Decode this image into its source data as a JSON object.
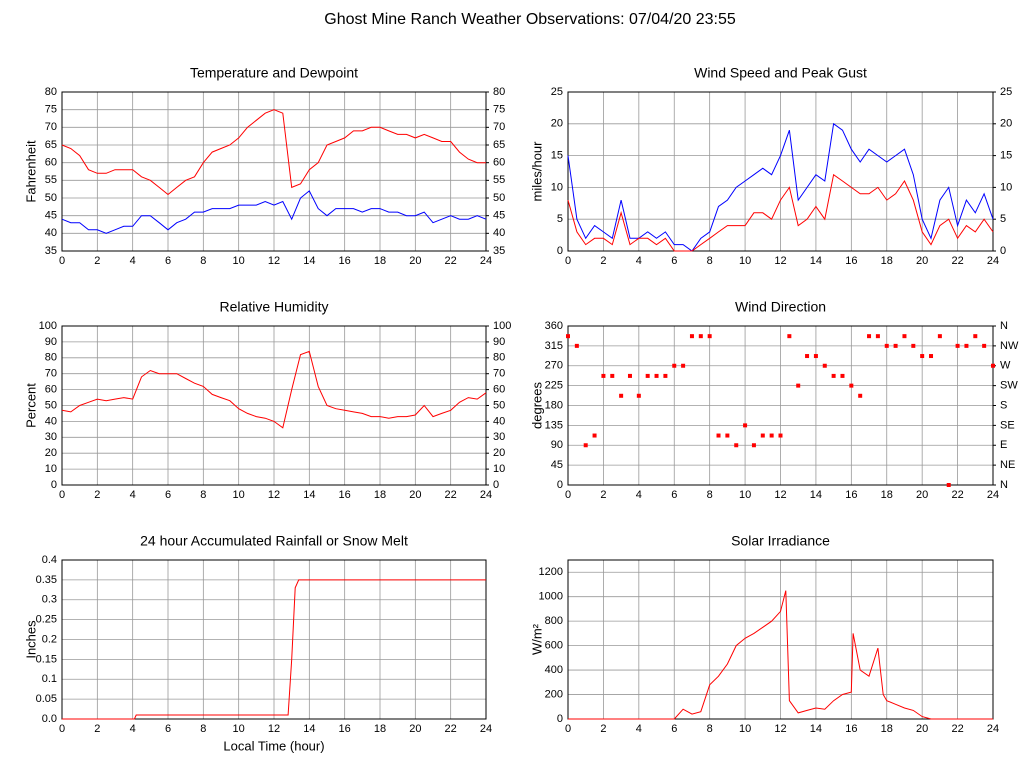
{
  "title": "Ghost Mine Ranch Weather Observations: 07/04/20 23:55",
  "chart_data": [
    {
      "type": "line",
      "title": "Temperature and Dewpoint",
      "y_label": "Fahrenheit",
      "x": [
        0,
        0.5,
        1,
        1.5,
        2,
        2.5,
        3,
        3.5,
        4,
        4.5,
        5,
        5.5,
        6,
        6.5,
        7,
        7.5,
        8,
        8.5,
        9,
        9.5,
        10,
        10.5,
        11,
        11.5,
        12,
        12.5,
        13,
        13.5,
        14,
        14.5,
        15,
        15.5,
        16,
        16.5,
        17,
        17.5,
        18,
        18.5,
        19,
        19.5,
        20,
        20.5,
        21,
        21.5,
        22,
        22.5,
        23,
        23.5,
        24
      ],
      "xlim": [
        0,
        24
      ],
      "xticks": [
        0,
        2,
        4,
        6,
        8,
        10,
        12,
        14,
        16,
        18,
        20,
        22,
        24
      ],
      "ylim": [
        35,
        80
      ],
      "yticks": [
        35,
        40,
        45,
        50,
        55,
        60,
        65,
        70,
        75,
        80
      ],
      "y2lim": [
        35,
        80
      ],
      "y2ticks": [
        35,
        40,
        45,
        50,
        55,
        60,
        65,
        70,
        75,
        80
      ],
      "grid": true,
      "series": [
        {
          "name": "Temperature",
          "color": "#ff0000",
          "values": [
            65,
            64,
            62,
            58,
            57,
            57,
            58,
            58,
            58,
            56,
            55,
            53,
            51,
            53,
            55,
            56,
            60,
            63,
            64,
            65,
            67,
            70,
            72,
            74,
            75,
            74,
            53,
            54,
            58,
            60,
            65,
            66,
            67,
            69,
            69,
            70,
            70,
            69,
            68,
            68,
            67,
            68,
            67,
            66,
            66,
            63,
            61,
            60,
            60
          ]
        },
        {
          "name": "Dewpoint",
          "color": "#0000ff",
          "values": [
            44,
            43,
            43,
            41,
            41,
            40,
            41,
            42,
            42,
            45,
            45,
            43,
            41,
            43,
            44,
            46,
            46,
            47,
            47,
            47,
            48,
            48,
            48,
            49,
            48,
            49,
            44,
            50,
            52,
            47,
            45,
            47,
            47,
            47,
            46,
            47,
            47,
            46,
            46,
            45,
            45,
            46,
            43,
            44,
            45,
            44,
            44,
            45,
            44
          ]
        }
      ]
    },
    {
      "type": "line",
      "title": "Wind Speed and Peak Gust",
      "y_label": "miles/hour",
      "x": [
        0,
        0.5,
        1,
        1.5,
        2,
        2.5,
        3,
        3.5,
        4,
        4.5,
        5,
        5.5,
        6,
        6.5,
        7,
        7.5,
        8,
        8.5,
        9,
        9.5,
        10,
        10.5,
        11,
        11.5,
        12,
        12.5,
        13,
        13.5,
        14,
        14.5,
        15,
        15.5,
        16,
        16.5,
        17,
        17.5,
        18,
        18.5,
        19,
        19.5,
        20,
        20.5,
        21,
        21.5,
        22,
        22.5,
        23,
        23.5,
        24
      ],
      "xlim": [
        0,
        24
      ],
      "xticks": [
        0,
        2,
        4,
        6,
        8,
        10,
        12,
        14,
        16,
        18,
        20,
        22,
        24
      ],
      "ylim": [
        0,
        25
      ],
      "yticks": [
        0,
        5,
        10,
        15,
        20,
        25
      ],
      "y2lim": [
        0,
        25
      ],
      "y2ticks": [
        0,
        5,
        10,
        15,
        20,
        25
      ],
      "grid": true,
      "series": [
        {
          "name": "Peak Gust",
          "color": "#0000ff",
          "values": [
            15,
            5,
            2,
            4,
            3,
            2,
            8,
            2,
            2,
            3,
            2,
            3,
            1,
            1,
            0,
            2,
            3,
            7,
            8,
            10,
            11,
            12,
            13,
            12,
            15,
            19,
            8,
            10,
            12,
            11,
            20,
            19,
            16,
            14,
            16,
            15,
            14,
            15,
            16,
            12,
            5,
            2,
            8,
            10,
            4,
            8,
            6,
            9,
            5
          ]
        },
        {
          "name": "Wind Speed",
          "color": "#ff0000",
          "values": [
            8,
            3,
            1,
            2,
            2,
            1,
            6,
            1,
            2,
            2,
            1,
            2,
            0,
            0,
            0,
            1,
            2,
            3,
            4,
            4,
            4,
            6,
            6,
            5,
            8,
            10,
            4,
            5,
            7,
            5,
            12,
            11,
            10,
            9,
            9,
            10,
            8,
            9,
            11,
            8,
            3,
            1,
            4,
            5,
            2,
            4,
            3,
            5,
            3
          ]
        }
      ]
    },
    {
      "type": "line",
      "title": "Relative Humidity",
      "y_label": "Percent",
      "x": [
        0,
        0.5,
        1,
        1.5,
        2,
        2.5,
        3,
        3.5,
        4,
        4.5,
        5,
        5.5,
        6,
        6.5,
        7,
        7.5,
        8,
        8.5,
        9,
        9.5,
        10,
        10.5,
        11,
        11.5,
        12,
        12.5,
        13,
        13.5,
        14,
        14.5,
        15,
        15.5,
        16,
        16.5,
        17,
        17.5,
        18,
        18.5,
        19,
        19.5,
        20,
        20.5,
        21,
        21.5,
        22,
        22.5,
        23,
        23.5,
        24
      ],
      "xlim": [
        0,
        24
      ],
      "xticks": [
        0,
        2,
        4,
        6,
        8,
        10,
        12,
        14,
        16,
        18,
        20,
        22,
        24
      ],
      "ylim": [
        0,
        100
      ],
      "yticks": [
        0,
        10,
        20,
        30,
        40,
        50,
        60,
        70,
        80,
        90,
        100
      ],
      "y2lim": [
        0,
        100
      ],
      "y2ticks": [
        0,
        10,
        20,
        30,
        40,
        50,
        60,
        70,
        80,
        90,
        100
      ],
      "grid": true,
      "series": [
        {
          "name": "Relative Humidity",
          "color": "#ff0000",
          "values": [
            47,
            46,
            50,
            52,
            54,
            53,
            54,
            55,
            54,
            68,
            72,
            70,
            70,
            70,
            67,
            64,
            62,
            57,
            55,
            53,
            48,
            45,
            43,
            42,
            40,
            36,
            60,
            82,
            84,
            62,
            50,
            48,
            47,
            46,
            45,
            43,
            43,
            42,
            43,
            43,
            44,
            50,
            43,
            45,
            47,
            52,
            55,
            54,
            58
          ]
        }
      ]
    },
    {
      "type": "scatter",
      "title": "Wind Direction",
      "y_label": "degrees",
      "x": [
        0,
        0.5,
        1,
        1.5,
        2,
        2.5,
        3,
        3.5,
        4,
        4.5,
        5,
        5.5,
        6,
        6.5,
        7,
        7.5,
        8,
        8.5,
        9,
        9.5,
        10,
        10.5,
        11,
        11.5,
        12,
        12.5,
        13,
        13.5,
        14,
        14.5,
        15,
        15.5,
        16,
        16.5,
        17,
        17.5,
        18,
        18.5,
        19,
        19.5,
        20,
        20.5,
        21,
        21.5,
        22,
        22.5,
        23,
        23.5,
        24
      ],
      "xlim": [
        0,
        24
      ],
      "xticks": [
        0,
        2,
        4,
        6,
        8,
        10,
        12,
        14,
        16,
        18,
        20,
        22,
        24
      ],
      "ylim": [
        0,
        360
      ],
      "yticks": [
        0,
        45,
        90,
        135,
        180,
        225,
        270,
        315,
        360
      ],
      "y2lim": [
        0,
        360
      ],
      "y2ticks": [
        {
          "value": 0,
          "label": "N"
        },
        {
          "value": 45,
          "label": "NE"
        },
        {
          "value": 90,
          "label": "E"
        },
        {
          "value": 135,
          "label": "SE"
        },
        {
          "value": 180,
          "label": "S"
        },
        {
          "value": 225,
          "label": "SW"
        },
        {
          "value": 270,
          "label": "W"
        },
        {
          "value": 315,
          "label": "NW"
        },
        {
          "value": 360,
          "label": "N"
        }
      ],
      "grid": true,
      "series": [
        {
          "name": "Wind Direction",
          "color": "#ff0000",
          "values": [
            337,
            315,
            90,
            112,
            247,
            247,
            202,
            247,
            202,
            247,
            247,
            247,
            270,
            270,
            337,
            337,
            337,
            112,
            112,
            90,
            135,
            90,
            112,
            112,
            112,
            337,
            225,
            292,
            292,
            270,
            247,
            247,
            225,
            202,
            337,
            337,
            315,
            315,
            337,
            315,
            292,
            292,
            337,
            0,
            315,
            315,
            337,
            315,
            270
          ]
        }
      ]
    },
    {
      "type": "line",
      "title": "24 hour Accumulated Rainfall or Snow Melt",
      "y_label": "Inches",
      "x_label": "Local Time (hour)",
      "x": [
        0,
        4.1,
        4.2,
        12.8,
        13.0,
        13.2,
        13.4,
        24
      ],
      "xlim": [
        0,
        24
      ],
      "xticks": [
        0,
        2,
        4,
        6,
        8,
        10,
        12,
        14,
        16,
        18,
        20,
        22,
        24
      ],
      "ylim": [
        0,
        0.4
      ],
      "yticks": [
        {
          "value": 0,
          "label": "0.0"
        },
        0.05,
        0.1,
        0.15,
        0.2,
        0.25,
        0.3,
        0.35,
        0.4
      ],
      "grid": true,
      "series": [
        {
          "name": "Rainfall",
          "color": "#ff0000",
          "values": [
            0,
            0,
            0.01,
            0.01,
            0.15,
            0.33,
            0.35,
            0.35
          ]
        }
      ]
    },
    {
      "type": "line",
      "title": "Solar Irradiance",
      "y_label": "W/m²",
      "x": [
        0,
        6,
        6.5,
        7,
        7.5,
        8,
        8.5,
        9,
        9.5,
        10,
        10.5,
        11,
        11.5,
        12,
        12.3,
        12.5,
        13,
        13.5,
        14,
        14.5,
        15,
        15.5,
        16,
        16.1,
        16.5,
        17,
        17.5,
        17.8,
        18,
        18.5,
        19,
        19.5,
        20,
        20.5,
        24
      ],
      "xlim": [
        0,
        24
      ],
      "xticks": [
        0,
        2,
        4,
        6,
        8,
        10,
        12,
        14,
        16,
        18,
        20,
        22,
        24
      ],
      "ylim": [
        0,
        1300
      ],
      "yticks": [
        0,
        200,
        400,
        600,
        800,
        1000,
        1200
      ],
      "grid": true,
      "series": [
        {
          "name": "Solar Irradiance",
          "color": "#ff0000",
          "values": [
            0,
            0,
            80,
            40,
            60,
            280,
            350,
            450,
            600,
            660,
            700,
            750,
            800,
            880,
            1050,
            150,
            50,
            70,
            90,
            80,
            150,
            200,
            220,
            700,
            400,
            350,
            580,
            200,
            150,
            120,
            90,
            70,
            20,
            0,
            0
          ]
        }
      ]
    }
  ]
}
